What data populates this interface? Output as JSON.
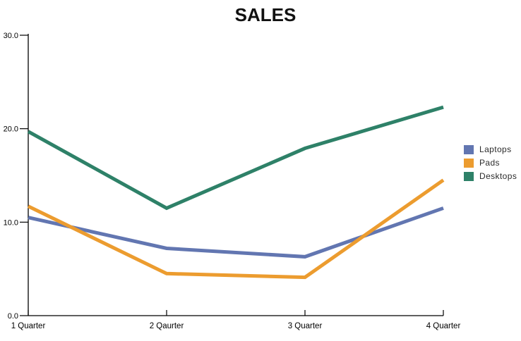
{
  "chart_data": {
    "type": "line",
    "title": "SALES",
    "categories": [
      "1 Quarter",
      "2 Qaurter",
      "3 Quarter",
      "4 Quarter"
    ],
    "series": [
      {
        "name": "Laptops",
        "color": "#6276b1",
        "values": [
          10.5,
          7.2,
          6.3,
          11.5
        ]
      },
      {
        "name": "Pads",
        "color": "#ec9c2f",
        "values": [
          11.7,
          4.5,
          4.1,
          14.5
        ]
      },
      {
        "name": "Desktops",
        "color": "#2e8168",
        "values": [
          19.7,
          11.5,
          17.9,
          22.3
        ]
      }
    ],
    "xlabel": "",
    "ylabel": "",
    "ylim": [
      0,
      30
    ],
    "y_ticks": [
      {
        "value": 0,
        "label": "0.0"
      },
      {
        "value": 10,
        "label": "10.0"
      },
      {
        "value": 20,
        "label": "20.0"
      },
      {
        "value": 30,
        "label": "30.0"
      }
    ],
    "grid": false,
    "legend_position": "right",
    "axis_color": "#000000",
    "title_color": "#111111",
    "line_width": 5
  }
}
